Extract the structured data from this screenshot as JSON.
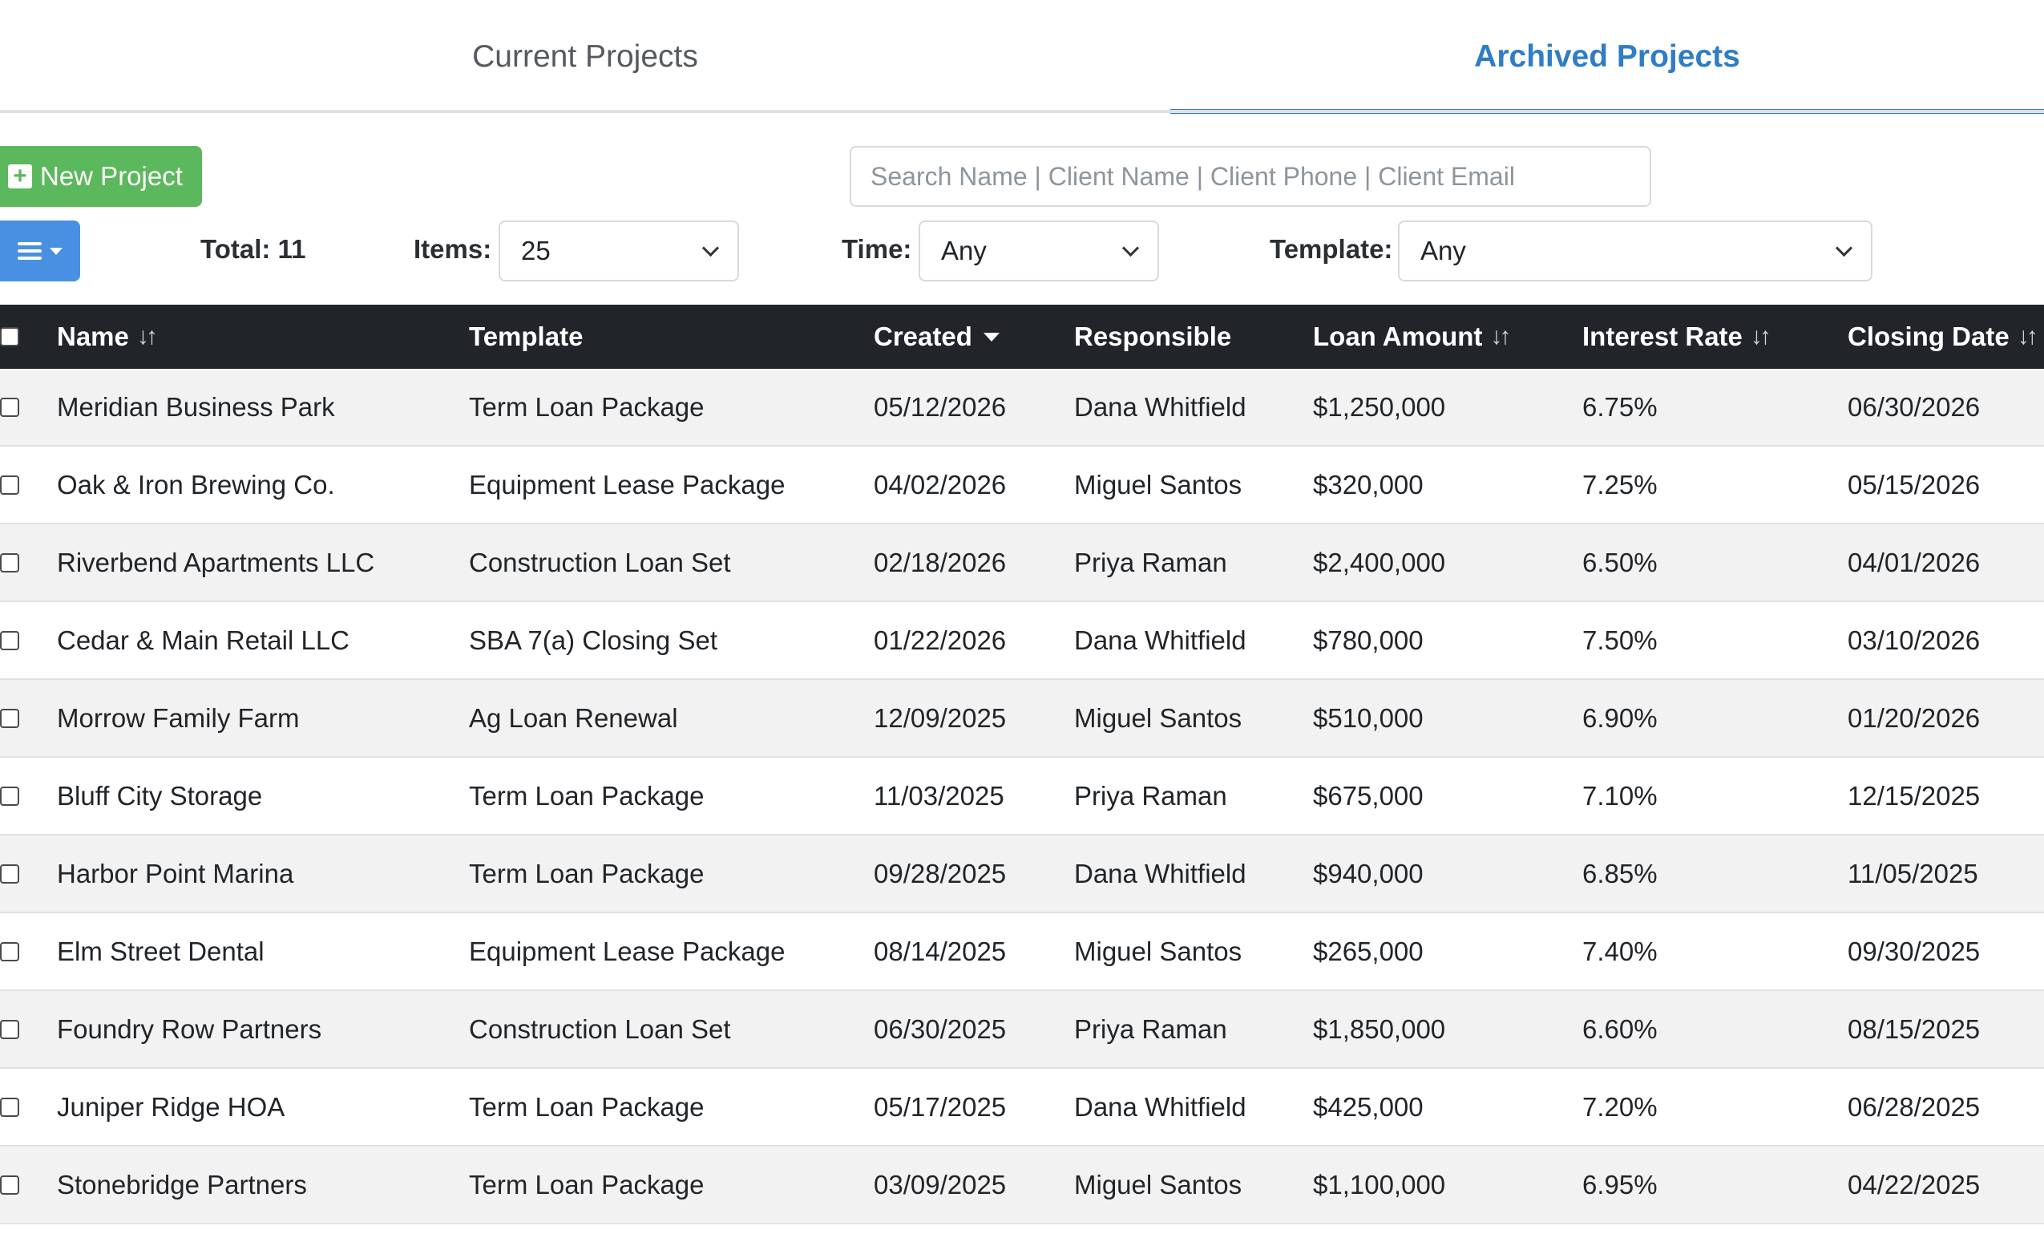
{
  "tabs": {
    "current": "Current Projects",
    "archived": "Archived Projects"
  },
  "toolbar": {
    "new_project_label": "New Project",
    "search_placeholder": "Search Name | Client Name | Client Phone | Client Email",
    "total_label": "Total: 11",
    "items_label": "Items:",
    "items_value": "25",
    "time_label": "Time:",
    "time_value": "Any",
    "template_label": "Template:",
    "template_value": "Any"
  },
  "table": {
    "headers": [
      "Name",
      "Template",
      "Created",
      "Responsible",
      "Loan Amount",
      "Interest Rate",
      "Closing Date"
    ],
    "rows": [
      [
        "Meridian Business Park",
        "Term Loan Package",
        "05/12/2026",
        "Dana Whitfield",
        "$1,250,000",
        "6.75%",
        "06/30/2026"
      ],
      [
        "Oak & Iron Brewing Co.",
        "Equipment Lease Package",
        "04/02/2026",
        "Miguel Santos",
        "$320,000",
        "7.25%",
        "05/15/2026"
      ],
      [
        "Riverbend Apartments LLC",
        "Construction Loan Set",
        "02/18/2026",
        "Priya Raman",
        "$2,400,000",
        "6.50%",
        "04/01/2026"
      ],
      [
        "Cedar & Main Retail LLC",
        "SBA 7(a) Closing Set",
        "01/22/2026",
        "Dana Whitfield",
        "$780,000",
        "7.50%",
        "03/10/2026"
      ],
      [
        "Morrow Family Farm",
        "Ag Loan Renewal",
        "12/09/2025",
        "Miguel Santos",
        "$510,000",
        "6.90%",
        "01/20/2026"
      ],
      [
        "Bluff City Storage",
        "Term Loan Package",
        "11/03/2025",
        "Priya Raman",
        "$675,000",
        "7.10%",
        "12/15/2025"
      ],
      [
        "Harbor Point Marina",
        "Term Loan Package",
        "09/28/2025",
        "Dana Whitfield",
        "$940,000",
        "6.85%",
        "11/05/2025"
      ],
      [
        "Elm Street Dental",
        "Equipment Lease Package",
        "08/14/2025",
        "Miguel Santos",
        "$265,000",
        "7.40%",
        "09/30/2025"
      ],
      [
        "Foundry Row Partners",
        "Construction Loan Set",
        "06/30/2025",
        "Priya Raman",
        "$1,850,000",
        "6.60%",
        "08/15/2025"
      ],
      [
        "Juniper Ridge HOA",
        "Term Loan Package",
        "05/17/2025",
        "Dana Whitfield",
        "$425,000",
        "7.20%",
        "06/28/2025"
      ],
      [
        "Stonebridge Partners",
        "Term Loan Package",
        "03/09/2025",
        "Miguel Santos",
        "$1,100,000",
        "6.95%",
        "04/22/2025"
      ]
    ]
  },
  "icons": {
    "plus": "plus-square-icon",
    "menu": "hamburger-menu-icon",
    "sort": "sort-arrows-icon",
    "sort_desc": "sort-desc-caret-icon",
    "chevron": "chevron-down-icon"
  },
  "colors": {
    "accent_blue": "#2f7dc4",
    "new_button_green": "#5cb85c",
    "menu_button_blue": "#4a90e2",
    "table_header_bg": "#212529"
  }
}
